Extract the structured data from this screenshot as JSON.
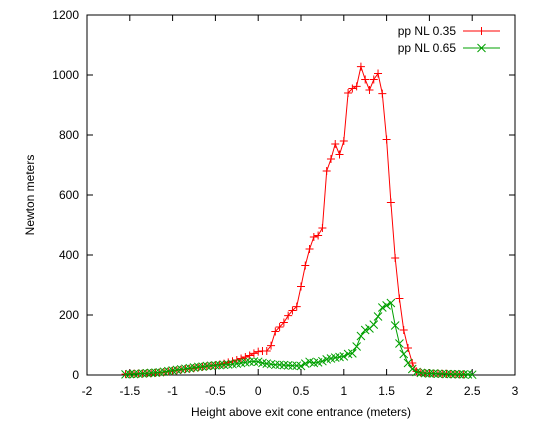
{
  "chart_data": {
    "type": "line",
    "title": "",
    "xlabel": "Height above exit cone entrance (meters)",
    "ylabel": "Newton meters",
    "xlim": [
      -2,
      3
    ],
    "ylim": [
      0,
      1200
    ],
    "xticks": [
      -2,
      -1.5,
      -1,
      -0.5,
      0,
      0.5,
      1,
      1.5,
      2,
      2.5,
      3
    ],
    "yticks": [
      0,
      200,
      400,
      600,
      800,
      1000,
      1200
    ],
    "xtick_labels": [
      "-2",
      "-1.5",
      "-1",
      "-0.5",
      "0",
      "0.5",
      "1",
      "1.5",
      "2",
      "2.5",
      "3"
    ],
    "ytick_labels": [
      "0",
      "200",
      "400",
      "600",
      "800",
      "1000",
      "1200"
    ],
    "grid": false,
    "legend_position": "top-right",
    "series": [
      {
        "name": "pp NL 0.35",
        "color": "#ff0000",
        "marker": "plus",
        "points": [
          [
            -1.55,
            3
          ],
          [
            -1.5,
            4
          ],
          [
            -1.45,
            4
          ],
          [
            -1.4,
            5
          ],
          [
            -1.35,
            5
          ],
          [
            -1.3,
            6
          ],
          [
            -1.25,
            6
          ],
          [
            -1.2,
            7
          ],
          [
            -1.15,
            8
          ],
          [
            -1.1,
            10
          ],
          [
            -1.05,
            12
          ],
          [
            -1.0,
            14
          ],
          [
            -0.95,
            16
          ],
          [
            -0.9,
            18
          ],
          [
            -0.85,
            20
          ],
          [
            -0.8,
            21
          ],
          [
            -0.75,
            23
          ],
          [
            -0.7,
            25
          ],
          [
            -0.65,
            27
          ],
          [
            -0.6,
            29
          ],
          [
            -0.55,
            31
          ],
          [
            -0.5,
            33
          ],
          [
            -0.45,
            35
          ],
          [
            -0.4,
            38
          ],
          [
            -0.35,
            42
          ],
          [
            -0.3,
            46
          ],
          [
            -0.25,
            50
          ],
          [
            -0.2,
            55
          ],
          [
            -0.15,
            60
          ],
          [
            -0.1,
            65
          ],
          [
            -0.05,
            72
          ],
          [
            0.0,
            78
          ],
          [
            0.05,
            80
          ],
          [
            0.1,
            80
          ],
          [
            0.15,
            98
          ],
          [
            0.2,
            145
          ],
          [
            0.25,
            160
          ],
          [
            0.3,
            175
          ],
          [
            0.35,
            198
          ],
          [
            0.4,
            215
          ],
          [
            0.45,
            228
          ],
          [
            0.5,
            295
          ],
          [
            0.55,
            365
          ],
          [
            0.6,
            420
          ],
          [
            0.65,
            460
          ],
          [
            0.7,
            465
          ],
          [
            0.75,
            490
          ],
          [
            0.8,
            680
          ],
          [
            0.85,
            720
          ],
          [
            0.9,
            770
          ],
          [
            0.95,
            735
          ],
          [
            1.0,
            780
          ],
          [
            1.05,
            940
          ],
          [
            1.1,
            955
          ],
          [
            1.15,
            962
          ],
          [
            1.2,
            1028
          ],
          [
            1.25,
            985
          ],
          [
            1.3,
            950
          ],
          [
            1.35,
            985
          ],
          [
            1.4,
            1005
          ],
          [
            1.45,
            938
          ],
          [
            1.5,
            785
          ],
          [
            1.55,
            575
          ],
          [
            1.6,
            390
          ],
          [
            1.65,
            255
          ],
          [
            1.7,
            150
          ],
          [
            1.75,
            90
          ],
          [
            1.8,
            40
          ],
          [
            1.85,
            12
          ],
          [
            1.9,
            8
          ],
          [
            1.95,
            6
          ],
          [
            2.0,
            6
          ],
          [
            2.05,
            5
          ],
          [
            2.1,
            5
          ],
          [
            2.15,
            4
          ],
          [
            2.2,
            4
          ],
          [
            2.25,
            3
          ],
          [
            2.3,
            3
          ],
          [
            2.35,
            2
          ],
          [
            2.4,
            2
          ]
        ]
      },
      {
        "name": "pp NL 0.65",
        "color": "#00a000",
        "marker": "cross",
        "points": [
          [
            -1.55,
            2
          ],
          [
            -1.5,
            3
          ],
          [
            -1.45,
            3
          ],
          [
            -1.4,
            4
          ],
          [
            -1.35,
            5
          ],
          [
            -1.3,
            6
          ],
          [
            -1.25,
            7
          ],
          [
            -1.2,
            8
          ],
          [
            -1.15,
            9
          ],
          [
            -1.1,
            11
          ],
          [
            -1.05,
            13
          ],
          [
            -1.0,
            15
          ],
          [
            -0.95,
            17
          ],
          [
            -0.9,
            19
          ],
          [
            -0.85,
            21
          ],
          [
            -0.8,
            23
          ],
          [
            -0.75,
            25
          ],
          [
            -0.7,
            27
          ],
          [
            -0.65,
            28
          ],
          [
            -0.6,
            30
          ],
          [
            -0.55,
            31
          ],
          [
            -0.5,
            32
          ],
          [
            -0.45,
            33
          ],
          [
            -0.4,
            34
          ],
          [
            -0.35,
            35
          ],
          [
            -0.3,
            36
          ],
          [
            -0.25,
            38
          ],
          [
            -0.2,
            40
          ],
          [
            -0.15,
            42
          ],
          [
            -0.1,
            44
          ],
          [
            -0.05,
            45
          ],
          [
            0.0,
            44
          ],
          [
            0.05,
            40
          ],
          [
            0.1,
            38
          ],
          [
            0.15,
            36
          ],
          [
            0.2,
            34
          ],
          [
            0.25,
            34
          ],
          [
            0.3,
            33
          ],
          [
            0.35,
            32
          ],
          [
            0.4,
            31
          ],
          [
            0.45,
            31
          ],
          [
            0.5,
            30
          ],
          [
            0.55,
            38
          ],
          [
            0.6,
            44
          ],
          [
            0.65,
            40
          ],
          [
            0.7,
            42
          ],
          [
            0.75,
            46
          ],
          [
            0.8,
            52
          ],
          [
            0.85,
            55
          ],
          [
            0.9,
            58
          ],
          [
            0.95,
            60
          ],
          [
            1.0,
            62
          ],
          [
            1.05,
            70
          ],
          [
            1.1,
            72
          ],
          [
            1.15,
            95
          ],
          [
            1.2,
            130
          ],
          [
            1.25,
            150
          ],
          [
            1.3,
            155
          ],
          [
            1.35,
            168
          ],
          [
            1.4,
            195
          ],
          [
            1.45,
            225
          ],
          [
            1.5,
            232
          ],
          [
            1.55,
            240
          ],
          [
            1.6,
            165
          ],
          [
            1.65,
            105
          ],
          [
            1.7,
            70
          ],
          [
            1.75,
            40
          ],
          [
            1.8,
            20
          ],
          [
            1.85,
            10
          ],
          [
            1.9,
            7
          ],
          [
            1.95,
            6
          ],
          [
            2.0,
            5
          ],
          [
            2.05,
            5
          ],
          [
            2.1,
            4
          ],
          [
            2.15,
            4
          ],
          [
            2.2,
            3
          ],
          [
            2.25,
            3
          ],
          [
            2.3,
            3
          ],
          [
            2.35,
            2
          ],
          [
            2.4,
            2
          ],
          [
            2.45,
            2
          ],
          [
            2.5,
            1
          ]
        ]
      }
    ]
  }
}
